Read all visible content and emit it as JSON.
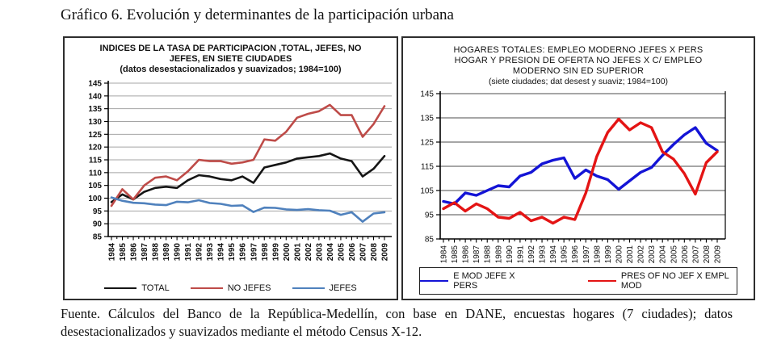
{
  "page_title": "Gráfico 6. Evolución y determinantes de la participación urbana",
  "caption": "Fuente. Cálculos del Banco de la República-Medellín, con base en DANE, encuestas hogares (7 ciudades); datos desestacionalizados y suavizados mediante el método Census X-12.",
  "chart_data": [
    {
      "type": "line",
      "name": "participation-indices",
      "title": "INDICES DE LA TASA DE PARTICIPACION ,TOTAL, JEFES, NO JEFES, EN SIETE CIUDADES",
      "title_lines": [
        "INDICES DE LA TASA DE PARTICIPACION ,TOTAL, JEFES, NO",
        "JEFES, EN SIETE CIUDADES"
      ],
      "subtitle": "(datos desestacionalizados y suavizados; 1984=100)",
      "categories": [
        "1984",
        "1985",
        "1986",
        "1987",
        "1988",
        "1989",
        "1990",
        "1991",
        "1992",
        "1993",
        "1994",
        "1995",
        "1996",
        "1997",
        "1998",
        "1999",
        "2000",
        "2001",
        "2002",
        "2003",
        "2004",
        "2005",
        "2006",
        "2007",
        "2008",
        "2009"
      ],
      "ylim": [
        85,
        145
      ],
      "ytick_step": 5,
      "grid": true,
      "legend_position": "bottom",
      "series": [
        {
          "name": "TOTAL",
          "color": "#151515",
          "values": [
            98.5,
            101.5,
            99.5,
            102.5,
            104,
            104.5,
            104,
            107,
            109,
            108.5,
            107.5,
            107,
            108.5,
            106,
            112,
            113,
            114,
            115.5,
            116,
            116.5,
            117.5,
            115.5,
            114.5,
            108.5,
            111.5,
            116.5
          ]
        },
        {
          "name": "NO JEFES",
          "color": "#BE4B48",
          "values": [
            97,
            103.5,
            99.5,
            105,
            108,
            108.5,
            107,
            110.5,
            115,
            114.5,
            114.5,
            113.5,
            114,
            115,
            123,
            122.5,
            126,
            131.5,
            133,
            134,
            136.5,
            132.5,
            132.5,
            124,
            129,
            136
          ]
        },
        {
          "name": "JEFES",
          "color": "#4F81BD",
          "values": [
            100.3,
            99,
            98.2,
            98,
            97.5,
            97.3,
            98.6,
            98.4,
            99.2,
            98.1,
            97.8,
            97,
            97.2,
            94.6,
            96.3,
            96.2,
            95.6,
            95.4,
            95.7,
            95.3,
            95.1,
            93.5,
            94.5,
            90.8,
            94,
            94.5
          ]
        }
      ]
    },
    {
      "type": "line",
      "name": "modern-employment-pressure",
      "title": "HOGARES TOTALES: EMPLEO MODERNO JEFES X PERS HOGAR Y PRESION DE OFERTA NO JEFES X C/ EMPLEO MODERNO SIN ED SUPERIOR",
      "title_lines": [
        "HOGARES TOTALES:  EMPLEO MODERNO JEFES X PERS",
        "HOGAR Y PRESION  DE OFERTA NO JEFES X C/ EMPLEO",
        "MODERNO SIN ED SUPERIOR"
      ],
      "subtitle": "(siete ciudades; dat desest y suaviz; 1984=100)",
      "categories": [
        "1984",
        "1985",
        "1986",
        "1987",
        "1988",
        "1989",
        "1990",
        "1991",
        "1992",
        "1993",
        "1994",
        "1995",
        "1996",
        "1997",
        "1998",
        "1999",
        "2000",
        "2001",
        "2002",
        "2003",
        "2004",
        "2005",
        "2006",
        "2007",
        "2008",
        "2009"
      ],
      "ylim": [
        85,
        145
      ],
      "ytick_step": 10,
      "grid": true,
      "legend_position": "bottom-boxed",
      "series": [
        {
          "name": "E MOD JEFE X PERS",
          "color": "#1414D6",
          "values": [
            100.5,
            99.5,
            104,
            103,
            105,
            107,
            106.5,
            111,
            112.5,
            116,
            117.5,
            118.5,
            110,
            113.5,
            111,
            109.5,
            105.5,
            109,
            112.5,
            114.5,
            119.5,
            124,
            128,
            131,
            124.5,
            121.5
          ]
        },
        {
          "name": "PRES OF NO JEF X EMPL MOD",
          "color": "#E41414",
          "values": [
            97.5,
            100,
            96.5,
            99.5,
            97.5,
            94,
            93.5,
            96,
            92.5,
            94,
            91.5,
            94,
            93,
            104,
            119,
            129,
            134.5,
            130,
            133,
            131,
            121,
            118,
            112,
            103.5,
            116.5,
            121
          ]
        }
      ]
    }
  ]
}
